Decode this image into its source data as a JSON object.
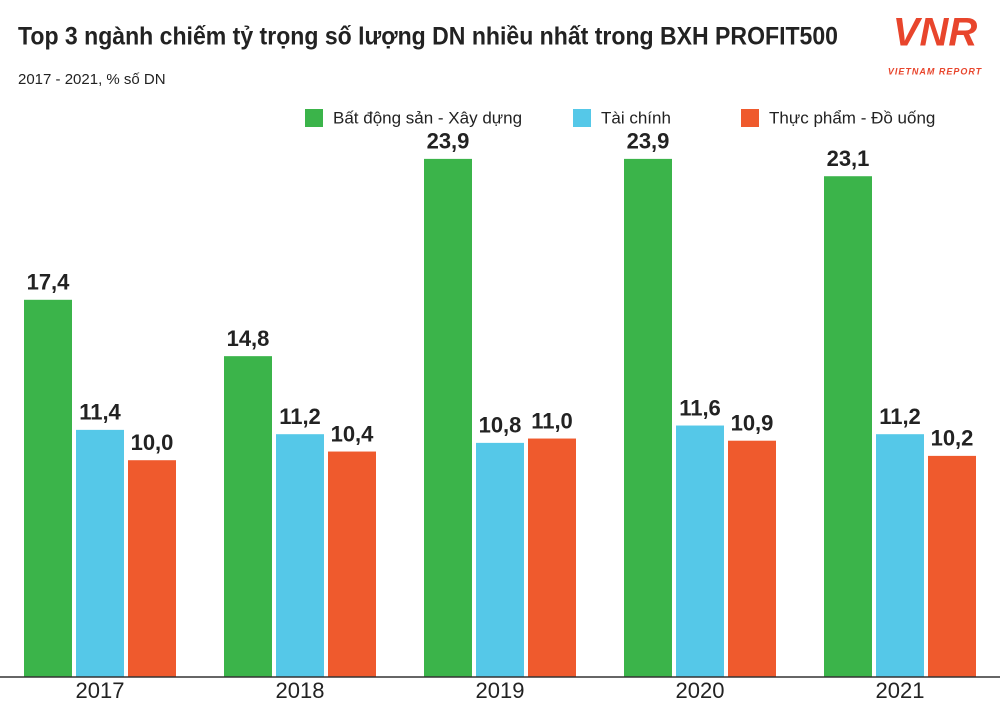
{
  "chart_data": {
    "type": "bar",
    "title": "Top 3 ngành chiếm tỷ trọng số lượng DN nhiều nhất trong BXH PROFIT500",
    "subtitle": "2017 - 2021, % số DN",
    "logo_text": "VNR",
    "logo_caption": "VIETNAM REPORT",
    "categories": [
      "2017",
      "2018",
      "2019",
      "2020",
      "2021"
    ],
    "series": [
      {
        "name": "Bất động sản - Xây dựng",
        "color": "#3bb44a",
        "values": [
          17.4,
          14.8,
          23.9,
          23.9,
          23.1
        ],
        "value_labels": [
          "17,4",
          "14,8",
          "23,9",
          "23,9",
          "23,1"
        ]
      },
      {
        "name": "Tài chính",
        "color": "#55c8e8",
        "values": [
          11.4,
          11.2,
          10.8,
          11.6,
          11.2
        ],
        "value_labels": [
          "11,4",
          "11,2",
          "10,8",
          "11,6",
          "11,2"
        ]
      },
      {
        "name": "Thực phẩm - Đồ uống",
        "color": "#ef5a2d",
        "values": [
          10.0,
          10.4,
          11.0,
          10.9,
          10.2
        ],
        "value_labels": [
          "10,0",
          "10,4",
          "11,0",
          "10,9",
          "10,2"
        ]
      }
    ],
    "ylim": [
      0,
      28
    ],
    "legend": "top"
  }
}
